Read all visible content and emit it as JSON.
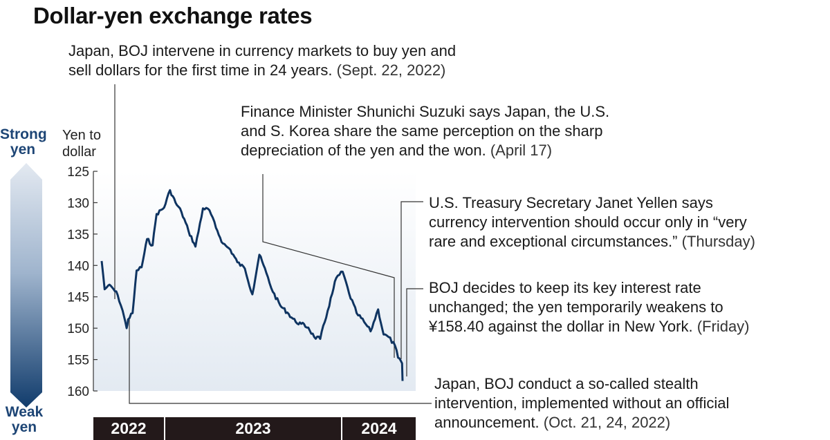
{
  "title": "Dollar-yen exchange rates",
  "side_labels": {
    "top": [
      "Strong",
      "yen"
    ],
    "bottom": [
      "Weak",
      "yen"
    ]
  },
  "colors": {
    "line": "#0f3461",
    "accent": "#1d4575",
    "year_bar": "#23191a",
    "leader": "#333333"
  },
  "annotations": {
    "sept_2022": {
      "lines": [
        "Japan, BOJ intervene in currency markets to buy yen and",
        "sell dollars for the first time in 24 years."
      ],
      "date": "(Sept. 22, 2022)"
    },
    "suzuki": {
      "lines": [
        "Finance Minister Shunichi Suzuki says Japan, the U.S.",
        "and S. Korea share the same perception on the sharp",
        "depreciation of the yen and the won."
      ],
      "date": "(April 17)"
    },
    "yellen": {
      "lines": [
        "U.S. Treasury Secretary Janet Yellen says",
        "currency intervention should occur only in “very",
        "rare and exceptional circumstances.”"
      ],
      "date": "(Thursday)"
    },
    "boj": {
      "lines": [
        "BOJ decides to keep its key interest rate",
        "unchanged; the yen temporarily weakens to",
        "¥158.40 against the dollar in New York."
      ],
      "date": "(Friday)"
    },
    "stealth": {
      "lines": [
        "Japan, BOJ conduct a so-called stealth",
        "intervention, implemented without an official",
        "announcement."
      ],
      "date": "(Oct. 21, 24, 2022)"
    }
  },
  "chart_data": {
    "type": "line",
    "title": "Dollar-yen exchange rates",
    "ylabel": "Yen to dollar",
    "y_ticks": [
      125,
      130,
      135,
      140,
      145,
      150,
      155,
      160
    ],
    "ylim": [
      125,
      160
    ],
    "y_inverted": true,
    "x_periods": [
      "2022",
      "2023",
      "2024"
    ],
    "grid": false,
    "series": [
      {
        "values": [
          [
            "2022-09-01",
            139.3
          ],
          [
            "2022-09-07",
            143.8
          ],
          [
            "2022-09-14",
            143.2
          ],
          [
            "2022-09-22",
            143.5
          ],
          [
            "2022-10-03",
            144.7
          ],
          [
            "2022-10-13",
            147.2
          ],
          [
            "2022-10-21",
            150.0
          ],
          [
            "2022-10-24",
            148.6
          ],
          [
            "2022-11-02",
            147.6
          ],
          [
            "2022-11-10",
            140.8
          ],
          [
            "2022-11-20",
            140.3
          ],
          [
            "2022-12-01",
            135.8
          ],
          [
            "2022-12-12",
            136.8
          ],
          [
            "2022-12-20",
            131.8
          ],
          [
            "2023-01-04",
            130.8
          ],
          [
            "2023-01-16",
            128.0
          ],
          [
            "2023-01-27",
            130.0
          ],
          [
            "2023-02-08",
            131.5
          ],
          [
            "2023-02-22",
            134.5
          ],
          [
            "2023-03-08",
            137.0
          ],
          [
            "2023-03-23",
            130.9
          ],
          [
            "2023-04-05",
            131.2
          ],
          [
            "2023-04-18",
            134.0
          ],
          [
            "2023-05-02",
            136.5
          ],
          [
            "2023-05-17",
            137.5
          ],
          [
            "2023-05-31",
            139.5
          ],
          [
            "2023-06-15",
            140.5
          ],
          [
            "2023-06-30",
            144.6
          ],
          [
            "2023-07-14",
            138.3
          ],
          [
            "2023-07-28",
            141.2
          ],
          [
            "2023-08-10",
            144.2
          ],
          [
            "2023-08-25",
            146.4
          ],
          [
            "2023-09-08",
            147.5
          ],
          [
            "2023-09-25",
            149.0
          ],
          [
            "2023-10-06",
            149.3
          ],
          [
            "2023-10-20",
            149.9
          ],
          [
            "2023-11-01",
            151.4
          ],
          [
            "2023-11-13",
            151.7
          ],
          [
            "2023-11-28",
            147.2
          ],
          [
            "2023-12-07",
            144.5
          ],
          [
            "2023-12-15",
            142.0
          ],
          [
            "2023-12-28",
            141.0
          ],
          [
            "2024-01-10",
            144.5
          ],
          [
            "2024-01-25",
            147.6
          ],
          [
            "2024-02-09",
            149.0
          ],
          [
            "2024-02-22",
            150.5
          ],
          [
            "2024-03-08",
            147.0
          ],
          [
            "2024-03-19",
            151.0
          ],
          [
            "2024-03-29",
            151.4
          ],
          [
            "2024-04-11",
            152.8
          ],
          [
            "2024-04-17",
            154.7
          ],
          [
            "2024-04-25",
            155.6
          ],
          [
            "2024-04-26",
            158.4
          ]
        ]
      }
    ]
  }
}
